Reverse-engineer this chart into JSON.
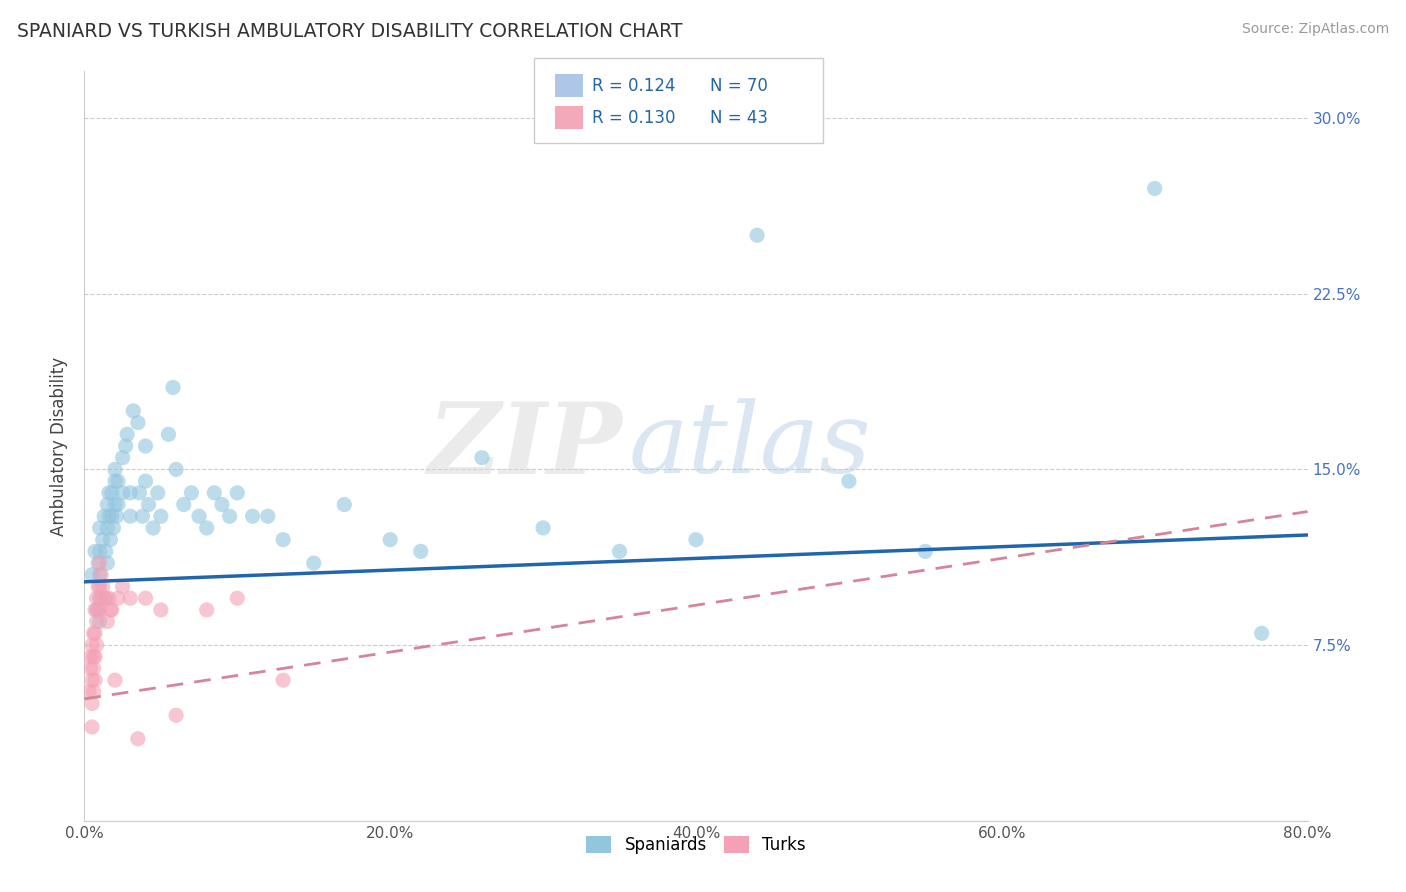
{
  "title": "SPANIARD VS TURKISH AMBULATORY DISABILITY CORRELATION CHART",
  "source_text": "Source: ZipAtlas.com",
  "ylabel": "Ambulatory Disability",
  "xlim": [
    0.0,
    0.8
  ],
  "ylim": [
    0.0,
    0.32
  ],
  "xticks": [
    0.0,
    0.2,
    0.4,
    0.6,
    0.8
  ],
  "xticklabels": [
    "0.0%",
    "20.0%",
    "40.0%",
    "60.0%",
    "80.0%"
  ],
  "yticks": [
    0.0,
    0.075,
    0.15,
    0.225,
    0.3
  ],
  "yticklabels_right": [
    "",
    "7.5%",
    "15.0%",
    "22.5%",
    "30.0%"
  ],
  "spaniard_color": "#92c5de",
  "turk_color": "#f4a0b5",
  "spaniard_line_color": "#2166ac",
  "turk_line_color": "#d6849a",
  "grid_color": "#cccccc",
  "background_color": "#ffffff",
  "watermark_zip": "ZIP",
  "watermark_atlas": "atlas",
  "spaniard_x": [
    0.005,
    0.007,
    0.008,
    0.009,
    0.01,
    0.01,
    0.01,
    0.01,
    0.01,
    0.012,
    0.013,
    0.014,
    0.015,
    0.015,
    0.015,
    0.016,
    0.016,
    0.017,
    0.018,
    0.018,
    0.019,
    0.02,
    0.02,
    0.02,
    0.021,
    0.022,
    0.022,
    0.025,
    0.025,
    0.027,
    0.028,
    0.03,
    0.03,
    0.032,
    0.035,
    0.036,
    0.038,
    0.04,
    0.04,
    0.042,
    0.045,
    0.048,
    0.05,
    0.055,
    0.058,
    0.06,
    0.065,
    0.07,
    0.075,
    0.08,
    0.085,
    0.09,
    0.095,
    0.1,
    0.11,
    0.12,
    0.13,
    0.15,
    0.17,
    0.2,
    0.22,
    0.26,
    0.3,
    0.35,
    0.4,
    0.44,
    0.5,
    0.55,
    0.7,
    0.77
  ],
  "spaniard_y": [
    0.105,
    0.115,
    0.09,
    0.11,
    0.125,
    0.115,
    0.105,
    0.095,
    0.085,
    0.12,
    0.13,
    0.115,
    0.135,
    0.125,
    0.11,
    0.14,
    0.13,
    0.12,
    0.14,
    0.13,
    0.125,
    0.15,
    0.145,
    0.135,
    0.13,
    0.145,
    0.135,
    0.155,
    0.14,
    0.16,
    0.165,
    0.14,
    0.13,
    0.175,
    0.17,
    0.14,
    0.13,
    0.16,
    0.145,
    0.135,
    0.125,
    0.14,
    0.13,
    0.165,
    0.185,
    0.15,
    0.135,
    0.14,
    0.13,
    0.125,
    0.14,
    0.135,
    0.13,
    0.14,
    0.13,
    0.13,
    0.12,
    0.11,
    0.135,
    0.12,
    0.115,
    0.155,
    0.125,
    0.115,
    0.12,
    0.25,
    0.145,
    0.115,
    0.27,
    0.08
  ],
  "turk_x": [
    0.003,
    0.004,
    0.004,
    0.005,
    0.005,
    0.005,
    0.005,
    0.006,
    0.006,
    0.006,
    0.006,
    0.007,
    0.007,
    0.007,
    0.007,
    0.008,
    0.008,
    0.008,
    0.009,
    0.009,
    0.01,
    0.01,
    0.01,
    0.011,
    0.011,
    0.012,
    0.013,
    0.014,
    0.015,
    0.016,
    0.017,
    0.018,
    0.02,
    0.022,
    0.025,
    0.03,
    0.035,
    0.04,
    0.05,
    0.06,
    0.08,
    0.1,
    0.13
  ],
  "turk_y": [
    0.055,
    0.065,
    0.07,
    0.075,
    0.06,
    0.05,
    0.04,
    0.08,
    0.07,
    0.065,
    0.055,
    0.09,
    0.08,
    0.07,
    0.06,
    0.095,
    0.085,
    0.075,
    0.1,
    0.09,
    0.11,
    0.1,
    0.09,
    0.105,
    0.095,
    0.1,
    0.095,
    0.095,
    0.085,
    0.095,
    0.09,
    0.09,
    0.06,
    0.095,
    0.1,
    0.095,
    0.035,
    0.095,
    0.09,
    0.045,
    0.09,
    0.095,
    0.06
  ],
  "sp_line_x0": 0.0,
  "sp_line_y0": 0.102,
  "sp_line_x1": 0.8,
  "sp_line_y1": 0.122,
  "tk_line_x0": 0.0,
  "tk_line_y0": 0.052,
  "tk_line_x1": 0.8,
  "tk_line_y1": 0.132
}
